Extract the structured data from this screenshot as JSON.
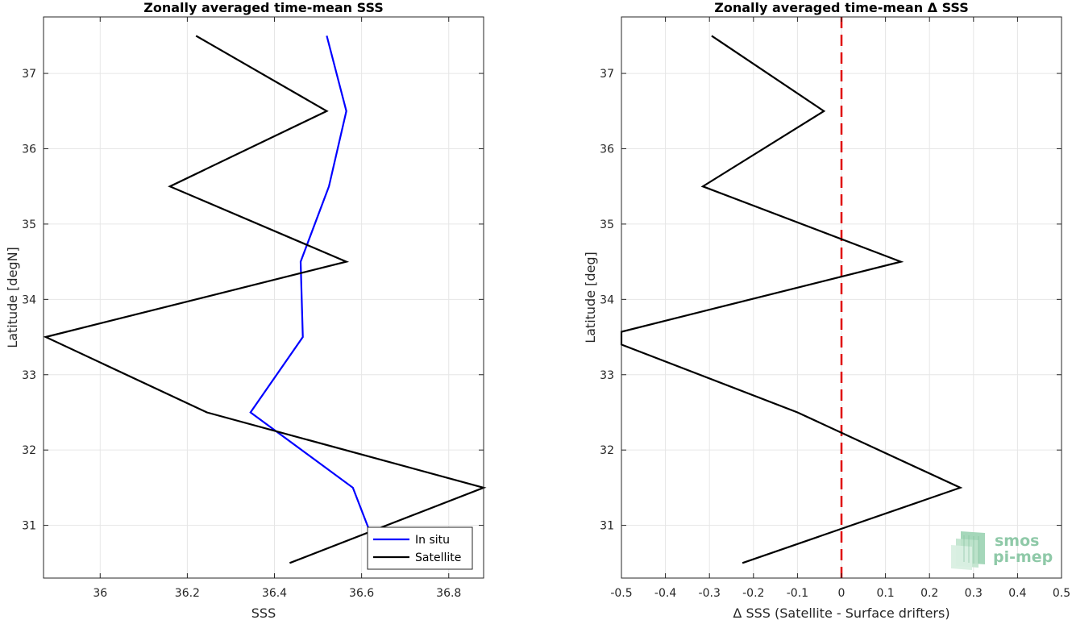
{
  "chart_data": [
    {
      "type": "line",
      "title": "Zonally averaged time-mean SSS",
      "xlabel": "SSS",
      "ylabel": "Latitude [degN]",
      "xlim": [
        35.87,
        36.88
      ],
      "ylim": [
        30.3,
        37.75
      ],
      "xticks": [
        36,
        36.2,
        36.4,
        36.6,
        36.8
      ],
      "xtick_labels": [
        "36",
        "36.2",
        "36.4",
        "36.6",
        "36.8"
      ],
      "yticks": [
        31,
        32,
        33,
        34,
        35,
        36,
        37
      ],
      "ytick_labels": [
        "31",
        "32",
        "33",
        "34",
        "35",
        "36",
        "37"
      ],
      "grid": true,
      "legend_position": "bottom-right",
      "series": [
        {
          "name": "In situ",
          "color": "#0000ff",
          "points": [
            [
              36.52,
              37.5
            ],
            [
              36.565,
              36.5
            ],
            [
              36.525,
              35.5
            ],
            [
              36.46,
              34.5
            ],
            [
              36.465,
              33.5
            ],
            [
              36.345,
              32.5
            ],
            [
              36.58,
              31.5
            ],
            [
              36.62,
              30.9
            ]
          ]
        },
        {
          "name": "Satellite",
          "color": "#000000",
          "points": [
            [
              36.22,
              37.5
            ],
            [
              36.52,
              36.5
            ],
            [
              36.16,
              35.5
            ],
            [
              36.565,
              34.5
            ],
            [
              35.875,
              33.5
            ],
            [
              36.245,
              32.5
            ],
            [
              36.88,
              31.5
            ],
            [
              36.435,
              30.5
            ]
          ]
        }
      ]
    },
    {
      "type": "line",
      "title": "Zonally averaged time-mean Δ SSS",
      "xlabel": "Δ SSS (Satellite - Surface drifters)",
      "ylabel": "Latitude [deg]",
      "xlim": [
        -0.5,
        0.5
      ],
      "ylim": [
        30.3,
        37.75
      ],
      "xticks": [
        -0.5,
        -0.4,
        -0.3,
        -0.2,
        -0.1,
        0,
        0.1,
        0.2,
        0.3,
        0.4,
        0.5
      ],
      "xtick_labels": [
        "-0.5",
        "-0.4",
        "-0.3",
        "-0.2",
        "-0.1",
        "0",
        "0.1",
        "0.2",
        "0.3",
        "0.4",
        "0.5"
      ],
      "yticks": [
        31,
        32,
        33,
        34,
        35,
        36,
        37
      ],
      "ytick_labels": [
        "31",
        "32",
        "33",
        "34",
        "35",
        "36",
        "37"
      ],
      "grid": true,
      "reference_line": {
        "x": 0,
        "color": "#e00000",
        "style": "dashed"
      },
      "series": [
        {
          "color": "#000000",
          "points": [
            [
              -0.295,
              37.5
            ],
            [
              -0.04,
              36.5
            ],
            [
              -0.315,
              35.5
            ],
            [
              0.135,
              34.5
            ],
            [
              -0.5,
              33.57
            ],
            [
              -0.5,
              33.4
            ],
            [
              -0.1,
              32.5
            ],
            [
              0.27,
              31.5
            ],
            [
              -0.225,
              30.5
            ]
          ]
        }
      ]
    }
  ],
  "logo": {
    "line1": "smos",
    "line2": "pi-mep"
  }
}
